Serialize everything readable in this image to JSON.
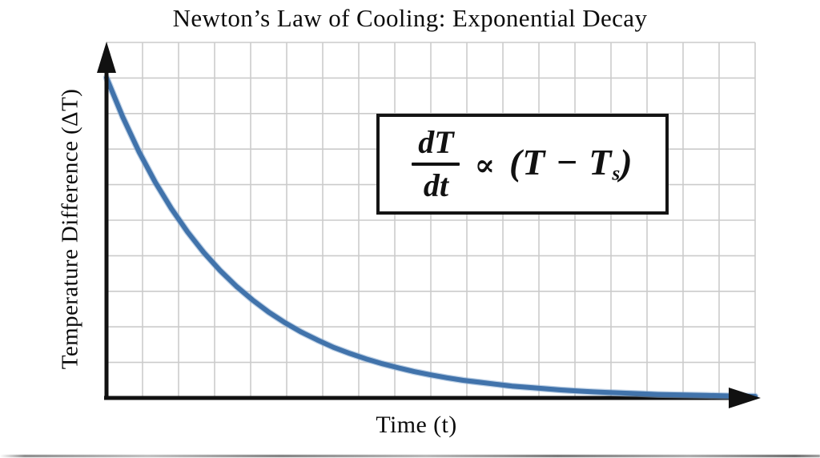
{
  "title": "Newton’s Law of Cooling: Exponential Decay",
  "x_axis": {
    "label": "Time (t)"
  },
  "y_axis": {
    "label": "Temperature Difference (ΔT)"
  },
  "formula_box": {
    "numerator": "dT",
    "denominator": "dt",
    "relation": "∝",
    "expression_open": "(T − T",
    "expression_sub": "s",
    "expression_close": ")",
    "full_text": "dT/dt ∝ (T − Ts)"
  },
  "colors": {
    "curve": "#4173AB",
    "curve_halo": "#89ACD1",
    "grid": "#CBCBCB",
    "axis": "#111111",
    "text": "#0D0D0D",
    "box_border": "#141414",
    "background": "#FFFFFF"
  },
  "chart_data": {
    "type": "line",
    "title": "Newton’s Law of Cooling: Exponential Decay",
    "xlabel": "Time (t)",
    "ylabel": "Temperature Difference (ΔT)",
    "annotation": "dT/dt ∝ (T − Ts)",
    "x_range": [
      0,
      10
    ],
    "ylim": [
      0,
      1
    ],
    "grid": true,
    "legend": "none",
    "tick_labels": "none (qualitative sketch, unlabeled axes with arrowheads)",
    "relationship": "ΔT = ΔT₀ · e^(−t/τ), τ ≈ 1.9",
    "series": [
      {
        "name": "temperature-difference-decay",
        "x": [
          0,
          0.25,
          0.5,
          0.75,
          1,
          1.25,
          1.5,
          1.75,
          2,
          2.25,
          2.5,
          2.75,
          3,
          3.25,
          3.5,
          3.75,
          4,
          4.25,
          4.5,
          4.75,
          5,
          5.25,
          5.5,
          5.75,
          6,
          6.25,
          6.5,
          6.75,
          7,
          7.25,
          7.5,
          7.75,
          8,
          8.25,
          8.5,
          8.75,
          9,
          9.25,
          9.5,
          9.75,
          10
        ],
        "y": [
          1,
          0.877,
          0.769,
          0.674,
          0.591,
          0.518,
          0.454,
          0.398,
          0.349,
          0.306,
          0.268,
          0.235,
          0.206,
          0.181,
          0.158,
          0.139,
          0.122,
          0.107,
          0.094,
          0.082,
          0.072,
          0.063,
          0.055,
          0.049,
          0.043,
          0.037,
          0.033,
          0.029,
          0.025,
          0.022,
          0.019,
          0.017,
          0.015,
          0.013,
          0.011,
          0.01,
          0.009,
          0.008,
          0.007,
          0.006,
          0.005
        ]
      }
    ]
  }
}
